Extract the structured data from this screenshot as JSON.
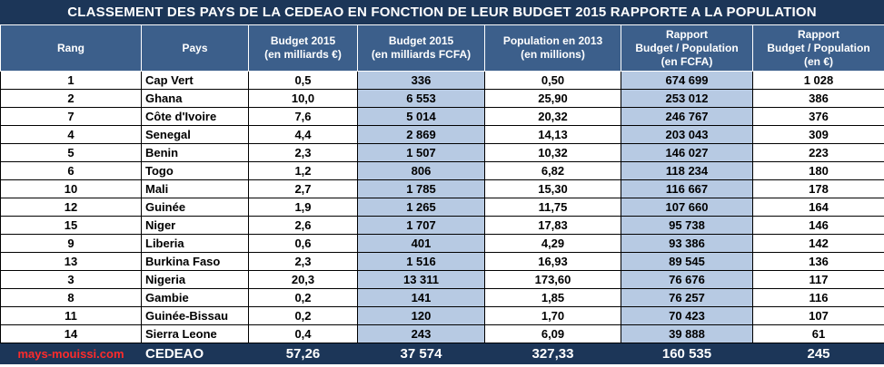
{
  "title": "CLASSEMENT DES PAYS DE LA CEDEAO EN FONCTION DE LEUR BUDGET 2015 RAPPORTE A LA POPULATION",
  "colors": {
    "header_bg": "#3c5f8b",
    "title_bg": "#1c3658",
    "highlight": "#b7cae3",
    "source": "#ff2b2b"
  },
  "chart_data": {
    "type": "table",
    "columns": [
      [
        "Rang"
      ],
      [
        "Pays"
      ],
      [
        "Budget 2015",
        "(en milliards €)"
      ],
      [
        "Budget 2015",
        "(en milliards FCFA)"
      ],
      [
        "Population en 2013",
        "(en millions)"
      ],
      [
        "Rapport",
        "Budget / Population",
        "(en FCFA)"
      ],
      [
        "Rapport",
        "Budget / Population",
        "(en €)"
      ]
    ],
    "rows": [
      [
        "1",
        "Cap Vert",
        "0,5",
        "336",
        "0,50",
        "674 699",
        "1 028"
      ],
      [
        "2",
        "Ghana",
        "10,0",
        "6 553",
        "25,90",
        "253 012",
        "386"
      ],
      [
        "7",
        "Côte d'Ivoire",
        "7,6",
        "5 014",
        "20,32",
        "246 767",
        "376"
      ],
      [
        "4",
        "Senegal",
        "4,4",
        "2 869",
        "14,13",
        "203 043",
        "309"
      ],
      [
        "5",
        "Benin",
        "2,3",
        "1 507",
        "10,32",
        "146 027",
        "223"
      ],
      [
        "6",
        "Togo",
        "1,2",
        "806",
        "6,82",
        "118 234",
        "180"
      ],
      [
        "10",
        "Mali",
        "2,7",
        "1 785",
        "15,30",
        "116 667",
        "178"
      ],
      [
        "12",
        "Guinée",
        "1,9",
        "1 265",
        "11,75",
        "107 660",
        "164"
      ],
      [
        "15",
        "Niger",
        "2,6",
        "1 707",
        "17,83",
        "95 738",
        "146"
      ],
      [
        "9",
        "Liberia",
        "0,6",
        "401",
        "4,29",
        "93 386",
        "142"
      ],
      [
        "13",
        "Burkina Faso",
        "2,3",
        "1 516",
        "16,93",
        "89 545",
        "136"
      ],
      [
        "3",
        "Nigeria",
        "20,3",
        "13 311",
        "173,60",
        "76 676",
        "117"
      ],
      [
        "8",
        "Gambie",
        "0,2",
        "141",
        "1,85",
        "76 257",
        "116"
      ],
      [
        "11",
        "Guinée-Bissau",
        "0,2",
        "120",
        "1,70",
        "70 423",
        "107"
      ],
      [
        "14",
        "Sierra Leone",
        "0,4",
        "243",
        "6,09",
        "39 888",
        "61"
      ]
    ],
    "total": [
      "mays-mouissi.com",
      "CEDEAO",
      "57,26",
      "37 574",
      "327,33",
      "160 535",
      "245"
    ]
  }
}
